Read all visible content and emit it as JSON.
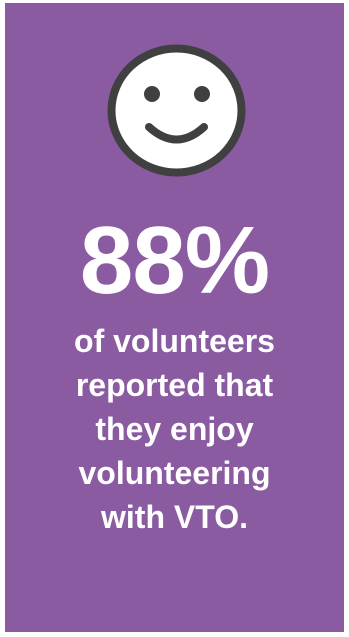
{
  "colors": {
    "background": "#8a5ba1",
    "text": "#ffffff",
    "icon_face": "#ffffff",
    "icon_outline": "#404040"
  },
  "icon": "smiley-face-icon",
  "statistic": "88%",
  "caption_lines": [
    "of volunteers",
    "reported that",
    "they enjoy",
    "volunteering",
    "with VTO."
  ]
}
